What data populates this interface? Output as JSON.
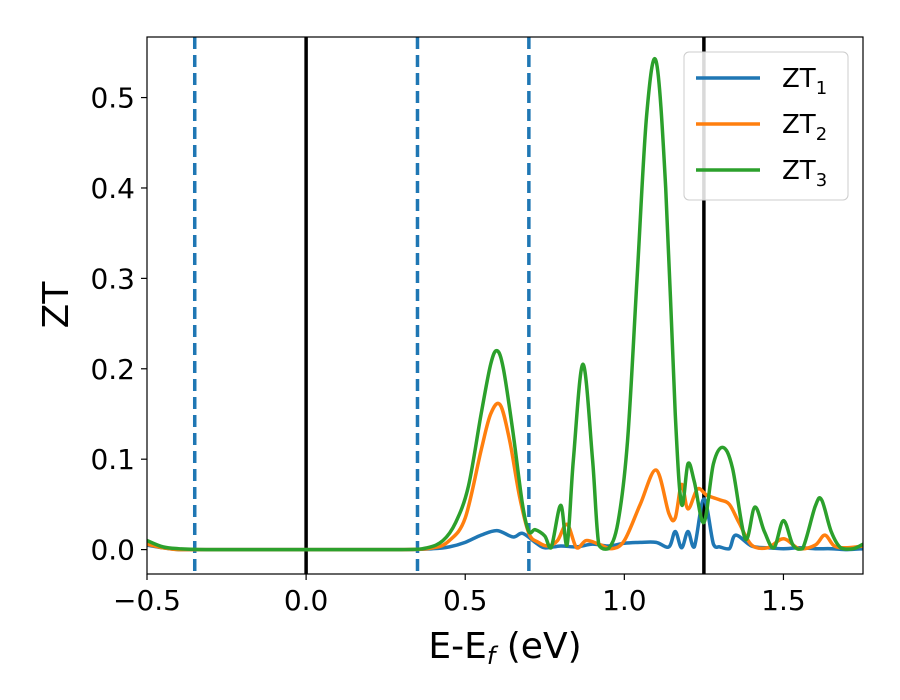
{
  "chart_data": {
    "type": "line",
    "title": "",
    "xlabel": "E-E",
    "xlabel_sub": "f",
    "xlabel_unit": " (eV)",
    "ylabel": "ZT",
    "xlim": [
      -0.5,
      1.75
    ],
    "ylim": [
      -0.027,
      0.567
    ],
    "x_ticks": [
      -0.5,
      0.0,
      0.5,
      1.0,
      1.5
    ],
    "x_tick_labels": [
      "−0.5",
      "0.0",
      "0.5",
      "1.0",
      "1.5"
    ],
    "y_ticks": [
      0.0,
      0.1,
      0.2,
      0.3,
      0.4,
      0.5
    ],
    "y_tick_labels": [
      "0.0",
      "0.1",
      "0.2",
      "0.3",
      "0.4",
      "0.5"
    ],
    "grid": false,
    "legend_position": "top-right",
    "vlines": [
      {
        "x": -0.35,
        "style": "dashed",
        "color": "#1f77b4"
      },
      {
        "x": 0.0,
        "style": "solid",
        "color": "#000000"
      },
      {
        "x": 0.35,
        "style": "dashed",
        "color": "#1f77b4"
      },
      {
        "x": 0.7,
        "style": "dashed",
        "color": "#1f77b4"
      },
      {
        "x": 1.25,
        "style": "solid",
        "color": "#000000"
      }
    ],
    "series": [
      {
        "name": "ZT",
        "name_sub": "1",
        "color": "#1f77b4",
        "x": [
          -0.5,
          -0.45,
          -0.4,
          -0.3,
          0.0,
          0.3,
          0.4,
          0.45,
          0.5,
          0.55,
          0.6,
          0.65,
          0.68,
          0.72,
          0.75,
          0.8,
          0.85,
          0.9,
          0.95,
          1.0,
          1.05,
          1.1,
          1.14,
          1.16,
          1.18,
          1.2,
          1.22,
          1.25,
          1.28,
          1.3,
          1.33,
          1.35,
          1.4,
          1.45,
          1.5,
          1.55,
          1.6,
          1.65,
          1.7,
          1.75
        ],
        "y": [
          0.005,
          0.002,
          0.0,
          0.0,
          0.0,
          0.0,
          0.001,
          0.003,
          0.008,
          0.016,
          0.021,
          0.014,
          0.018,
          0.008,
          0.002,
          0.004,
          0.003,
          0.006,
          0.004,
          0.007,
          0.008,
          0.008,
          0.003,
          0.02,
          0.002,
          0.02,
          0.003,
          0.056,
          0.006,
          0.003,
          0.001,
          0.016,
          0.004,
          0.002,
          0.001,
          0.002,
          0.001,
          0.001,
          0.0,
          0.001
        ]
      },
      {
        "name": "ZT",
        "name_sub": "2",
        "color": "#ff7f0e",
        "x": [
          -0.5,
          -0.45,
          -0.4,
          -0.3,
          0.0,
          0.3,
          0.4,
          0.45,
          0.5,
          0.55,
          0.58,
          0.61,
          0.64,
          0.67,
          0.7,
          0.73,
          0.76,
          0.79,
          0.82,
          0.85,
          0.88,
          0.92,
          0.96,
          1.0,
          1.05,
          1.1,
          1.14,
          1.16,
          1.18,
          1.2,
          1.23,
          1.26,
          1.3,
          1.33,
          1.36,
          1.4,
          1.45,
          1.5,
          1.55,
          1.6,
          1.63,
          1.66,
          1.7,
          1.75
        ],
        "y": [
          0.006,
          0.002,
          0.0,
          0.0,
          0.0,
          0.0,
          0.002,
          0.01,
          0.035,
          0.11,
          0.15,
          0.16,
          0.12,
          0.06,
          0.018,
          0.008,
          0.004,
          0.01,
          0.028,
          0.002,
          0.01,
          0.006,
          0.001,
          0.01,
          0.05,
          0.088,
          0.04,
          0.035,
          0.072,
          0.045,
          0.067,
          0.06,
          0.055,
          0.05,
          0.03,
          0.005,
          0.002,
          0.012,
          0.001,
          0.005,
          0.016,
          0.004,
          0.002,
          0.004
        ]
      },
      {
        "name": "ZT",
        "name_sub": "3",
        "color": "#2ca02c",
        "x": [
          -0.5,
          -0.45,
          -0.4,
          -0.3,
          0.0,
          0.3,
          0.38,
          0.43,
          0.47,
          0.51,
          0.55,
          0.58,
          0.6,
          0.62,
          0.65,
          0.68,
          0.7,
          0.72,
          0.75,
          0.77,
          0.8,
          0.82,
          0.84,
          0.87,
          0.9,
          0.92,
          0.95,
          0.98,
          1.01,
          1.04,
          1.07,
          1.1,
          1.13,
          1.16,
          1.18,
          1.2,
          1.22,
          1.25,
          1.28,
          1.31,
          1.34,
          1.38,
          1.41,
          1.44,
          1.47,
          1.5,
          1.53,
          1.56,
          1.6,
          1.62,
          1.65,
          1.68,
          1.72,
          1.75
        ],
        "y": [
          0.01,
          0.003,
          0.001,
          0.0,
          0.0,
          0.0,
          0.002,
          0.01,
          0.03,
          0.07,
          0.15,
          0.205,
          0.22,
          0.2,
          0.13,
          0.05,
          0.02,
          0.022,
          0.015,
          0.002,
          0.049,
          0.005,
          0.1,
          0.205,
          0.1,
          0.005,
          0.001,
          0.03,
          0.12,
          0.3,
          0.48,
          0.54,
          0.4,
          0.15,
          0.05,
          0.095,
          0.075,
          0.03,
          0.095,
          0.113,
          0.09,
          0.012,
          0.047,
          0.02,
          0.002,
          0.032,
          0.005,
          0.001,
          0.048,
          0.055,
          0.02,
          0.002,
          0.001,
          0.006
        ]
      }
    ]
  }
}
